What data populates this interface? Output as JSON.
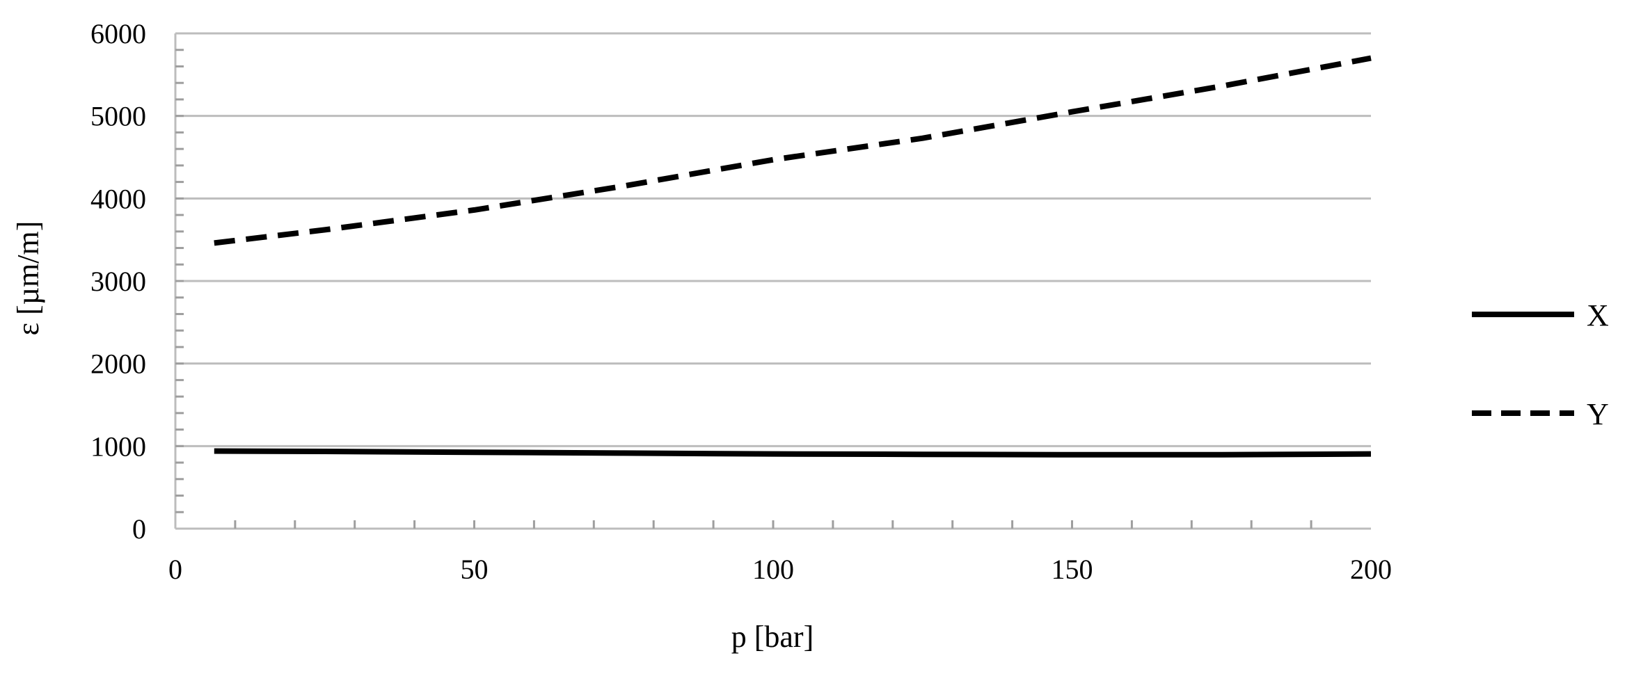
{
  "chart_data": {
    "type": "line",
    "title": "",
    "xlabel": "p [bar]",
    "ylabel": "ε [µm/m]",
    "xlim": [
      0,
      200
    ],
    "ylim": [
      0,
      6000
    ],
    "x_ticks": [
      0,
      50,
      100,
      150,
      200
    ],
    "y_ticks": [
      0,
      1000,
      2000,
      3000,
      4000,
      5000,
      6000
    ],
    "x_minor_step": 10,
    "y_minor_step": 200,
    "grid": "horizontal major gridlines",
    "legend_position": "right",
    "series": [
      {
        "name": "X",
        "style": "solid",
        "color": "#000000",
        "x": [
          6.5,
          25,
          50,
          75,
          100,
          125,
          150,
          175,
          200
        ],
        "y": [
          940,
          935,
          925,
          915,
          905,
          900,
          895,
          895,
          905
        ]
      },
      {
        "name": "Y",
        "style": "dashed",
        "color": "#000000",
        "x": [
          6.5,
          25,
          50,
          75,
          100,
          125,
          150,
          175,
          200
        ],
        "y": [
          3460,
          3620,
          3860,
          4150,
          4470,
          4730,
          5050,
          5360,
          5700
        ]
      }
    ]
  }
}
